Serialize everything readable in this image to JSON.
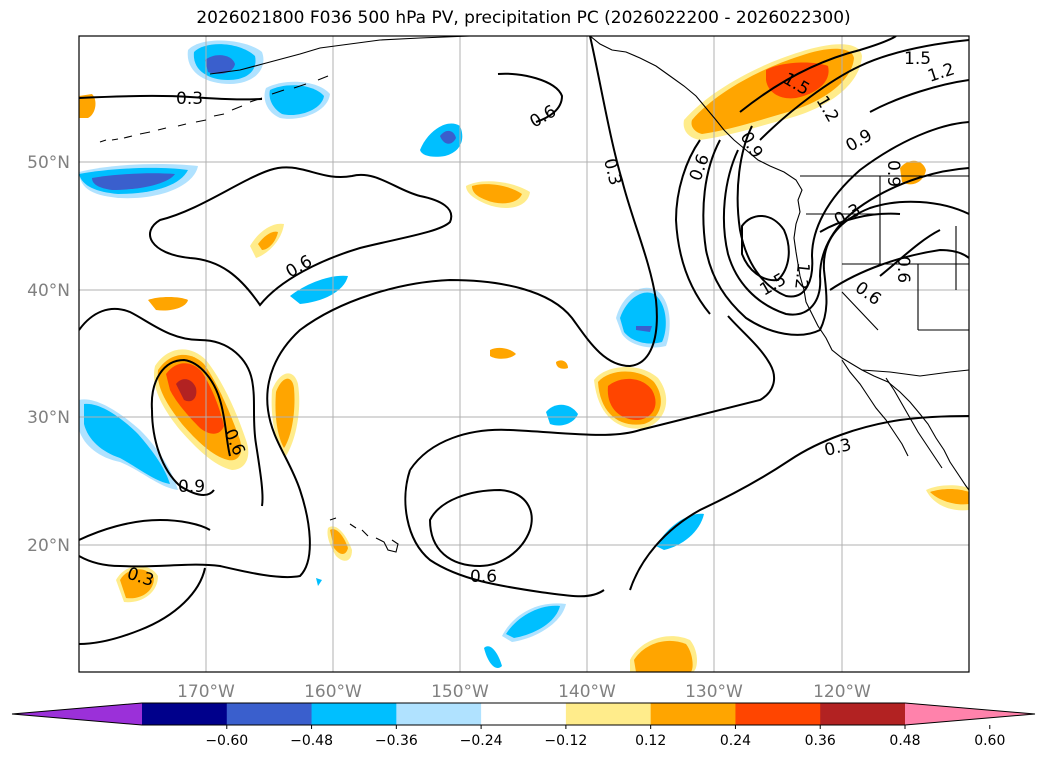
{
  "title": "2026021800 F036 500 hPa PV, precipitation PC (2026022200 - 2026022300)",
  "lat_labels": [
    "50°N",
    "40°N",
    "30°N",
    "20°N"
  ],
  "lon_labels": [
    "170°W",
    "160°W",
    "150°W",
    "140°W",
    "130°W",
    "120°W"
  ],
  "contour_labels": [
    "0.3",
    "0.6",
    "0.3",
    "0.6",
    "0.6",
    "0.9",
    "0.3",
    "0.3",
    "0.6",
    "1.5",
    "1.2",
    "0.9",
    "0.6",
    "0.3",
    "1.2",
    "1.5",
    "0.6",
    "0.9",
    "0.9",
    "0.6",
    "1.5",
    "1.2"
  ],
  "colorbar": {
    "ticks": [
      "−0.60",
      "−0.48",
      "−0.36",
      "−0.24",
      "−0.12",
      "0.12",
      "0.24",
      "0.36",
      "0.48",
      "0.60"
    ],
    "colors": [
      "#9b30d9",
      "#00008b",
      "#3a5fcd",
      "#00bfff",
      "#b0e2ff",
      "#ffffff",
      "#ffec8b",
      "#ffa500",
      "#ff4500",
      "#b22222",
      "#ff82ab"
    ]
  },
  "chart_data": {
    "type": "map",
    "title": "2026021800 F036 500 hPa PV, precipitation PC (2026022200 - 2026022300)",
    "fields": [
      "500 hPa PV contours",
      "precipitation PC shading"
    ],
    "contour_levels": [
      0.3,
      0.6,
      0.9,
      1.2,
      1.5
    ],
    "shading_levels": [
      -0.6,
      -0.48,
      -0.36,
      -0.24,
      -0.12,
      0.12,
      0.24,
      0.36,
      0.48,
      0.6
    ],
    "lon_range": [
      -180,
      -110
    ],
    "lat_range": [
      10,
      60
    ],
    "lon_ticks": [
      -170,
      -160,
      -150,
      -140,
      -130,
      -120
    ],
    "lat_ticks": [
      20,
      30,
      40,
      50
    ]
  }
}
